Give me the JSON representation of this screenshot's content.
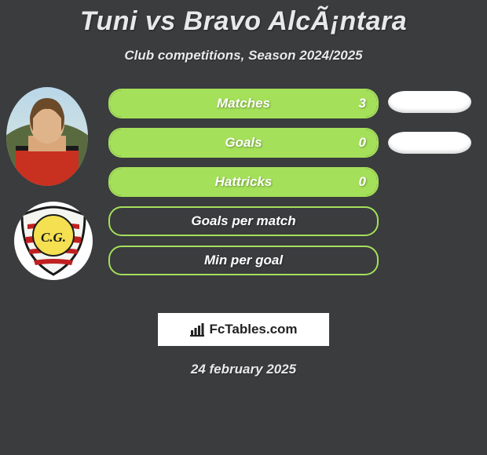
{
  "title": "Tuni vs Bravo AlcÃ¡ntara",
  "subtitle": "Club competitions, Season 2024/2025",
  "colors": {
    "background": "#3a3c3e",
    "accent": "#a5e05a",
    "text": "#e9e9e9",
    "pill": "#ffffff",
    "logo_box": "#ffffff"
  },
  "stats": [
    {
      "label": "Matches",
      "value": "3",
      "fill_pct": 100,
      "has_pill": true
    },
    {
      "label": "Goals",
      "value": "0",
      "fill_pct": 100,
      "has_pill": true
    },
    {
      "label": "Hattricks",
      "value": "0",
      "fill_pct": 100,
      "has_pill": false
    },
    {
      "label": "Goals per match",
      "value": "",
      "fill_pct": 0,
      "has_pill": false
    },
    {
      "label": "Min per goal",
      "value": "",
      "fill_pct": 0,
      "has_pill": false
    }
  ],
  "logo_text": "FcTables.com",
  "date": "24 february 2025",
  "club_abbr": "C.G."
}
